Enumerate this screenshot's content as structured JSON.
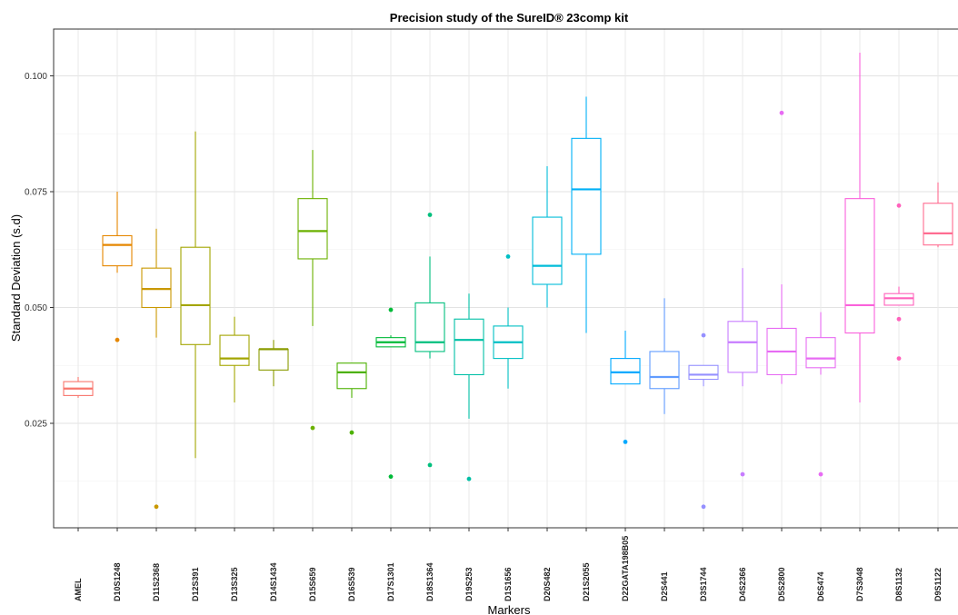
{
  "chart_data": {
    "type": "boxplot",
    "title": "Precision study of the SureID® 23comp kit",
    "xlabel": "Markers",
    "ylabel": "Standard Deviation (s.d)",
    "ylim": [
      0.007,
      0.11
    ],
    "yticks": [
      0.025,
      0.05,
      0.075,
      0.1
    ],
    "ytick_labels": [
      "0.025",
      "0.050",
      "0.075",
      "0.100"
    ],
    "grid": true,
    "categories": [
      "AMEL",
      "D10S1248",
      "D11S2368",
      "D12S391",
      "D13S325",
      "D14S1434",
      "D15S659",
      "D16S539",
      "D17S1301",
      "D18S1364",
      "D19S253",
      "D1S1656",
      "D20S482",
      "D21S2055",
      "D22GATA198B05",
      "D2S441",
      "D3S1744",
      "D4S2366",
      "D5S2800",
      "D6S474",
      "D7S3048",
      "D8S1132",
      "D9S1122"
    ],
    "boxes": [
      {
        "name": "AMEL",
        "color": "#F8766D",
        "whisker_low": 0.0305,
        "q1": 0.031,
        "median": 0.0325,
        "q3": 0.034,
        "whisker_high": 0.035,
        "outliers": []
      },
      {
        "name": "D10S1248",
        "color": "#E58700",
        "whisker_low": 0.0575,
        "q1": 0.059,
        "median": 0.0635,
        "q3": 0.0655,
        "whisker_high": 0.075,
        "outliers": [
          0.043
        ]
      },
      {
        "name": "D11S2368",
        "color": "#C99800",
        "whisker_low": 0.0435,
        "q1": 0.05,
        "median": 0.054,
        "q3": 0.0585,
        "whisker_high": 0.067,
        "outliers": [
          0.007
        ]
      },
      {
        "name": "D12S391",
        "color": "#A3A500",
        "whisker_low": 0.0175,
        "q1": 0.042,
        "median": 0.0505,
        "q3": 0.063,
        "whisker_high": 0.088,
        "outliers": []
      },
      {
        "name": "D13S325",
        "color": "#A3A500",
        "whisker_low": 0.0295,
        "q1": 0.0375,
        "median": 0.039,
        "q3": 0.044,
        "whisker_high": 0.048,
        "outliers": []
      },
      {
        "name": "D14S1434",
        "color": "#8A9B00",
        "whisker_low": 0.033,
        "q1": 0.0365,
        "median": 0.041,
        "q3": 0.041,
        "whisker_high": 0.043,
        "outliers": []
      },
      {
        "name": "D15S659",
        "color": "#6BB100",
        "whisker_low": 0.046,
        "q1": 0.0605,
        "median": 0.0665,
        "q3": 0.0735,
        "whisker_high": 0.084,
        "outliers": [
          0.024
        ]
      },
      {
        "name": "D16S539",
        "color": "#4CB100",
        "whisker_low": 0.0305,
        "q1": 0.0325,
        "median": 0.036,
        "q3": 0.038,
        "whisker_high": 0.038,
        "outliers": [
          0.023
        ]
      },
      {
        "name": "D17S1301",
        "color": "#00BA38",
        "whisker_low": 0.0415,
        "q1": 0.0415,
        "median": 0.0425,
        "q3": 0.0435,
        "whisker_high": 0.044,
        "outliers": [
          0.0495,
          0.0135
        ]
      },
      {
        "name": "D18S1364",
        "color": "#00BF7D",
        "whisker_low": 0.039,
        "q1": 0.0405,
        "median": 0.0425,
        "q3": 0.051,
        "whisker_high": 0.061,
        "outliers": [
          0.07,
          0.016
        ]
      },
      {
        "name": "D19S253",
        "color": "#00BFA5",
        "whisker_low": 0.026,
        "q1": 0.0355,
        "median": 0.043,
        "q3": 0.0475,
        "whisker_high": 0.053,
        "outliers": [
          0.013
        ]
      },
      {
        "name": "D1S1656",
        "color": "#00BFC4",
        "whisker_low": 0.0325,
        "q1": 0.039,
        "median": 0.0425,
        "q3": 0.046,
        "whisker_high": 0.05,
        "outliers": [
          0.061
        ]
      },
      {
        "name": "D20S482",
        "color": "#00BCD8",
        "whisker_low": 0.05,
        "q1": 0.055,
        "median": 0.059,
        "q3": 0.0695,
        "whisker_high": 0.0805,
        "outliers": []
      },
      {
        "name": "D21S2055",
        "color": "#00B0F6",
        "whisker_low": 0.0445,
        "q1": 0.0615,
        "median": 0.0755,
        "q3": 0.0865,
        "whisker_high": 0.0955,
        "outliers": []
      },
      {
        "name": "D22GATA198B05",
        "color": "#00A9FF",
        "whisker_low": 0.0335,
        "q1": 0.0335,
        "median": 0.036,
        "q3": 0.039,
        "whisker_high": 0.045,
        "outliers": [
          0.021
        ]
      },
      {
        "name": "D2S441",
        "color": "#619CFF",
        "whisker_low": 0.027,
        "q1": 0.0325,
        "median": 0.035,
        "q3": 0.0405,
        "whisker_high": 0.052,
        "outliers": []
      },
      {
        "name": "D3S1744",
        "color": "#9590FF",
        "whisker_low": 0.033,
        "q1": 0.0345,
        "median": 0.0355,
        "q3": 0.0375,
        "whisker_high": 0.0375,
        "outliers": [
          0.044,
          0.007
        ]
      },
      {
        "name": "D4S2366",
        "color": "#C77CFF",
        "whisker_low": 0.033,
        "q1": 0.036,
        "median": 0.0425,
        "q3": 0.047,
        "whisker_high": 0.0585,
        "outliers": [
          0.014
        ]
      },
      {
        "name": "D5S2800",
        "color": "#E76BF3",
        "whisker_low": 0.0335,
        "q1": 0.0355,
        "median": 0.0405,
        "q3": 0.0455,
        "whisker_high": 0.055,
        "outliers": [
          0.092
        ]
      },
      {
        "name": "D6S474",
        "color": "#E76BF3",
        "whisker_low": 0.0355,
        "q1": 0.037,
        "median": 0.039,
        "q3": 0.0435,
        "whisker_high": 0.049,
        "outliers": [
          0.014
        ]
      },
      {
        "name": "D7S3048",
        "color": "#FA62DB",
        "whisker_low": 0.0295,
        "q1": 0.0445,
        "median": 0.0505,
        "q3": 0.0735,
        "whisker_high": 0.105,
        "outliers": []
      },
      {
        "name": "D8S1132",
        "color": "#FF62BC",
        "whisker_low": 0.0505,
        "q1": 0.0505,
        "median": 0.052,
        "q3": 0.053,
        "whisker_high": 0.0545,
        "outliers": [
          0.072,
          0.0475,
          0.039
        ]
      },
      {
        "name": "D9S1122",
        "color": "#FF6C91",
        "whisker_low": 0.063,
        "q1": 0.0635,
        "median": 0.066,
        "q3": 0.0725,
        "whisker_high": 0.077,
        "outliers": []
      }
    ]
  }
}
